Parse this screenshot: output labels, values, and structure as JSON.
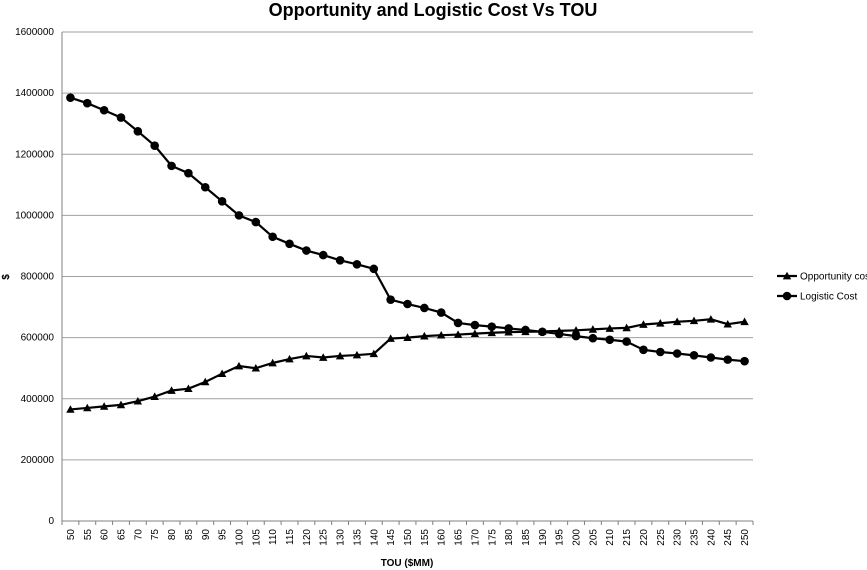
{
  "chart_data": {
    "type": "line",
    "title": "Opportunity and Logistic Cost Vs TOU",
    "xlabel": "TOU ($MM)",
    "ylabel": "$",
    "ylim": [
      0,
      1600000
    ],
    "yticks": [
      0,
      200000,
      400000,
      600000,
      800000,
      1000000,
      1200000,
      1400000,
      1600000
    ],
    "ytick_labels": [
      "0",
      "200000",
      "400000",
      "600000",
      "800000",
      "1000000",
      "1200000",
      "1400000",
      "1600000"
    ],
    "grid": true,
    "legend_position": "right",
    "categories": [
      "50",
      "55",
      "60",
      "65",
      "70",
      "75",
      "80",
      "85",
      "90",
      "95",
      "100",
      "105",
      "110",
      "115",
      "120",
      "125",
      "130",
      "135",
      "140",
      "145",
      "150",
      "155",
      "160",
      "165",
      "170",
      "175",
      "180",
      "185",
      "190",
      "195",
      "200",
      "205",
      "210",
      "215",
      "220",
      "225",
      "230",
      "235",
      "240",
      "245",
      "250"
    ],
    "series": [
      {
        "name": "Opportunity cost",
        "marker": "triangle",
        "color": "#000000",
        "values": [
          365000,
          370000,
          375000,
          380000,
          392000,
          407000,
          427000,
          433000,
          455000,
          482000,
          507000,
          500000,
          517000,
          530000,
          540000,
          535000,
          540000,
          543000,
          547000,
          597000,
          600000,
          605000,
          608000,
          610000,
          613000,
          616000,
          618000,
          619000,
          620000,
          622000,
          624000,
          627000,
          630000,
          632000,
          643000,
          647000,
          652000,
          655000,
          660000,
          644000,
          652000
        ]
      },
      {
        "name": "Logistic Cost",
        "marker": "circle",
        "color": "#000000",
        "values": [
          1385000,
          1367000,
          1344000,
          1320000,
          1275000,
          1228000,
          1162000,
          1138000,
          1092000,
          1046000,
          1000000,
          978000,
          930000,
          907000,
          885000,
          870000,
          853000,
          840000,
          825000,
          724000,
          710000,
          697000,
          682000,
          648000,
          641000,
          636000,
          630000,
          625000,
          619000,
          612000,
          605000,
          598000,
          593000,
          587000,
          560000,
          553000,
          548000,
          542000,
          535000,
          528000,
          523000
        ]
      }
    ]
  }
}
